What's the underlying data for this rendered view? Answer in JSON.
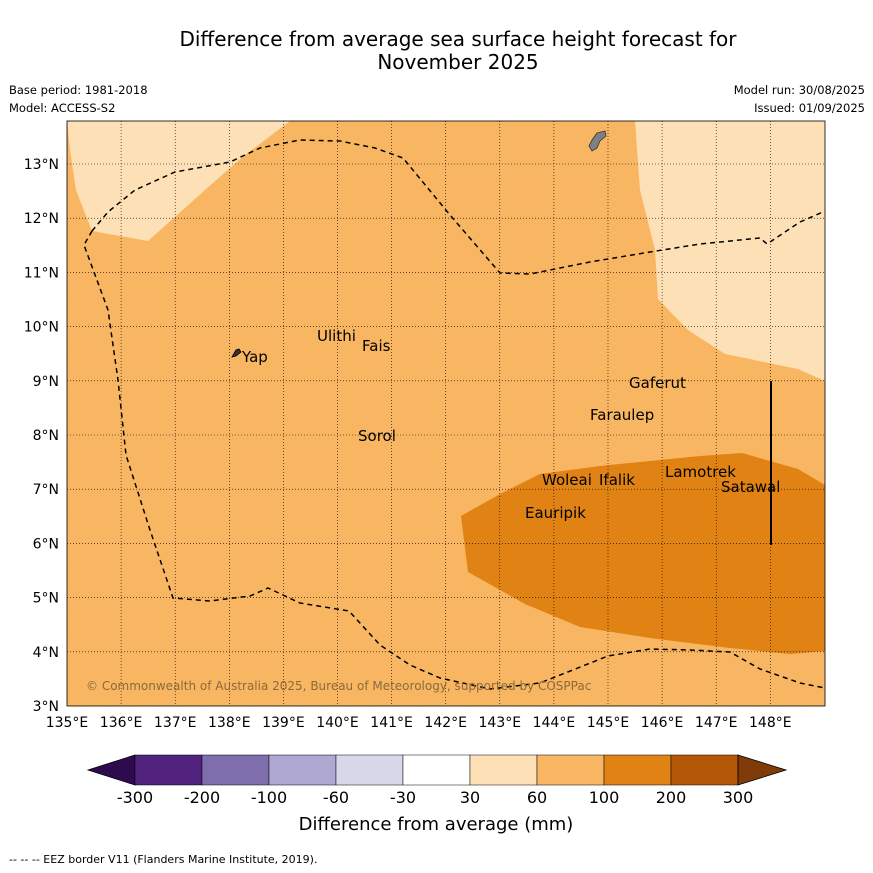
{
  "title_line1": "Difference from average sea surface height forecast for",
  "title_line2": "November 2025",
  "base_period": "Base period: 1981-2018",
  "model": "Model: ACCESS-S2",
  "model_run": "Model run: 30/08/2025",
  "issued": "Issued: 01/09/2025",
  "copyright": "© Commonwealth of Australia 2025, Bureau of Meteorology, supported by COSPPac",
  "footnote": "-- -- -- EEZ border V11 (Flanders Marine Institute, 2019).",
  "x_ticks": [
    "135°E",
    "136°E",
    "137°E",
    "138°E",
    "139°E",
    "140°E",
    "141°E",
    "142°E",
    "143°E",
    "144°E",
    "145°E",
    "146°E",
    "147°E",
    "148°E"
  ],
  "y_ticks": [
    "3°N",
    "4°N",
    "5°N",
    "6°N",
    "7°N",
    "8°N",
    "9°N",
    "10°N",
    "11°N",
    "12°N",
    "13°N"
  ],
  "places": {
    "yap": "Yap",
    "ulithi": "Ulithi",
    "fais": "Fais",
    "sorol": "Sorol",
    "gaferut": "Gaferut",
    "faraulep": "Faraulep",
    "woleai": "Woleai",
    "ifalik": "Ifalik",
    "lamotrek": "Lamotrek",
    "satawal": "Satawal",
    "eauripik": "Eauripik"
  },
  "colorbar": {
    "title": "Difference from average (mm)",
    "ticks": [
      "-300",
      "-200",
      "-100",
      "-60",
      "-30",
      "30",
      "60",
      "100",
      "200",
      "300"
    ],
    "colors": [
      "#2e0a4e",
      "#51237f",
      "#7e6fac",
      "#aea8d3",
      "#d8d8eb",
      "#ffffff",
      "#fee0b6",
      "#f9b662",
      "#e08214",
      "#b35806",
      "#7f3b08"
    ]
  },
  "fill_colors": {
    "background": "#f9b662",
    "light": "#fee0b6",
    "dark": "#e08214",
    "land": "#808080"
  }
}
